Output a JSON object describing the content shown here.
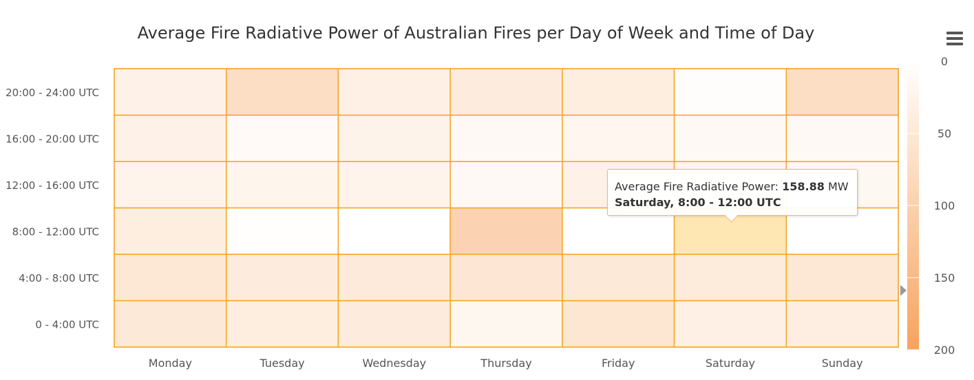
{
  "chart_data": {
    "type": "heatmap",
    "title": "Average Fire Radiative Power of Australian Fires per Day of Week and Time of Day",
    "x_categories": [
      "Monday",
      "Tuesday",
      "Wednesday",
      "Thursday",
      "Friday",
      "Saturday",
      "Sunday"
    ],
    "y_categories": [
      "0 - 4:00 UTC",
      "4:00 - 8:00 UTC",
      "8:00 - 12:00 UTC",
      "12:00 - 16:00 UTC",
      "16:00 - 20:00 UTC",
      "20:00 - 24:00 UTC"
    ],
    "values": [
      [
        48,
        52,
        38,
        24,
        30,
        28
      ],
      [
        38,
        42,
        2,
        22,
        10,
        72
      ],
      [
        42,
        46,
        0,
        24,
        26,
        32
      ],
      [
        18,
        54,
        95,
        12,
        14,
        42
      ],
      [
        55,
        48,
        0,
        28,
        20,
        38
      ],
      [
        32,
        44,
        158.88,
        22,
        12,
        4
      ],
      [
        36,
        50,
        0,
        16,
        12,
        72
      ]
    ],
    "colorAxis": {
      "min": 0,
      "max": 200,
      "ticks": [
        0,
        50,
        100,
        150,
        200
      ],
      "minColor": "#ffffff",
      "maxColor": "#f7a35c"
    },
    "highlight": {
      "x": 5,
      "y": 2,
      "color": "#ffe7b3"
    },
    "grid": true,
    "legend": "right-vertical"
  },
  "tooltip": {
    "series_label": "Average Fire Radiative Power:",
    "value": "158.88",
    "unit": "MW",
    "point_label": "Saturday, 8:00 - 12:00 UTC"
  },
  "colors": {
    "cell_border": "#f5a623",
    "text": "#333333",
    "label": "#555555"
  }
}
